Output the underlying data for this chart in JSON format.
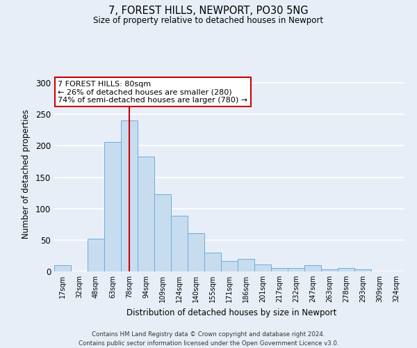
{
  "title": "7, FOREST HILLS, NEWPORT, PO30 5NG",
  "subtitle": "Size of property relative to detached houses in Newport",
  "xlabel": "Distribution of detached houses by size in Newport",
  "ylabel": "Number of detached properties",
  "bar_labels": [
    "17sqm",
    "32sqm",
    "48sqm",
    "63sqm",
    "78sqm",
    "94sqm",
    "109sqm",
    "124sqm",
    "140sqm",
    "155sqm",
    "171sqm",
    "186sqm",
    "201sqm",
    "217sqm",
    "232sqm",
    "247sqm",
    "263sqm",
    "278sqm",
    "293sqm",
    "309sqm",
    "324sqm"
  ],
  "bar_values": [
    10,
    0,
    52,
    206,
    240,
    183,
    123,
    89,
    61,
    30,
    17,
    20,
    11,
    5,
    5,
    10,
    3,
    5,
    3,
    0,
    0
  ],
  "bar_color": "#c8dcf0",
  "bar_edge_color": "#6aaed6",
  "ylim": [
    0,
    310
  ],
  "yticks": [
    0,
    50,
    100,
    150,
    200,
    250,
    300
  ],
  "vline_x": 4,
  "vline_color": "#cc0000",
  "annotation_title": "7 FOREST HILLS: 80sqm",
  "annotation_line1": "← 26% of detached houses are smaller (280)",
  "annotation_line2": "74% of semi-detached houses are larger (780) →",
  "annotation_box_color": "#cc0000",
  "footer_line1": "Contains HM Land Registry data © Crown copyright and database right 2024.",
  "footer_line2": "Contains public sector information licensed under the Open Government Licence v3.0.",
  "bg_color": "#e8eef8",
  "plot_bg_color": "#e8eef8"
}
